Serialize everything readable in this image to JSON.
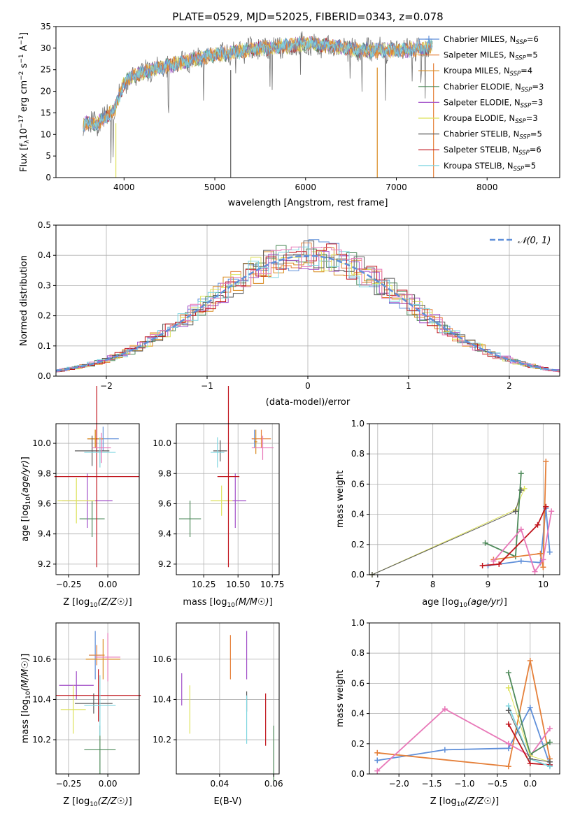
{
  "figure": {
    "title": "PLATE=0529, MJD=52025, FIBERID=0343, z=0.078"
  },
  "colors": {
    "Chabrier MILES": "#5f8fd9",
    "Salpeter MILES": "#e5803a",
    "Kroupa MILES": "#d98a1e",
    "Chabrier ELODIE": "#4e8a5a",
    "Salpeter ELODIE": "#a24fc8",
    "Kroupa ELODIE": "#dde25a",
    "Chabrier STELIB": "#5a5a5a",
    "Salpeter STELIB": "#c0141c",
    "Kroupa STELIB": "#7fd6e0",
    "pink": "#e878b8",
    "grid": "#b0b0b0"
  },
  "chart_data": [
    {
      "id": "spectrum",
      "type": "line",
      "xlabel": "wavelength [Angstrom, rest frame]",
      "ylabel": "Flux [f_λ10^-17 erg cm^-2 s^-1 A^-1]",
      "xlim": [
        3250,
        8800
      ],
      "ylim": [
        0,
        35
      ],
      "xticks": [
        4000,
        5000,
        6000,
        7000,
        8000
      ],
      "yticks": [
        0,
        5,
        10,
        15,
        20,
        25,
        30,
        35
      ],
      "grid": false,
      "legend_position": "top-right",
      "legend": [
        {
          "name": "Chabrier MILES",
          "nssp": "6",
          "marker": true
        },
        {
          "name": "Salpeter MILES",
          "nssp": "5",
          "marker": false
        },
        {
          "name": "Kroupa MILES",
          "nssp": "4",
          "marker": false
        },
        {
          "name": "Chabrier ELODIE",
          "nssp": "3",
          "marker": false
        },
        {
          "name": "Salpeter ELODIE",
          "nssp": "3",
          "marker": false
        },
        {
          "name": "Kroupa ELODIE",
          "nssp": "3",
          "marker": false
        },
        {
          "name": "Chabrier STELIB",
          "nssp": "5",
          "marker": false
        },
        {
          "name": "Salpeter STELIB",
          "nssp": "6",
          "marker": false
        },
        {
          "name": "Kroupa STELIB",
          "nssp": "5",
          "marker": false
        }
      ],
      "continuum": {
        "x": [
          3550,
          3700,
          3800,
          3900,
          4000,
          4100,
          4300,
          4500,
          4800,
          5000,
          5200,
          5500,
          5800,
          6000,
          6300,
          6600,
          6900,
          7100,
          7300,
          7400
        ],
        "y": [
          12.5,
          12.5,
          14,
          16,
          22,
          23.5,
          25,
          26,
          27.5,
          28.5,
          29,
          30,
          30.5,
          31,
          30.5,
          29.5,
          29.5,
          29.5,
          30,
          30.5
        ]
      },
      "spikes": [
        {
          "wavelength": 3910,
          "flux": 0
        },
        {
          "wavelength": 5175,
          "flux": 0
        },
        {
          "wavelength": 6790,
          "flux": 0
        },
        {
          "wavelength": 7410,
          "flux": 0
        }
      ]
    },
    {
      "id": "residuals",
      "type": "step",
      "xlabel": "(data-model)/error",
      "ylabel": "Normed distribution",
      "xlim": [
        -2.5,
        2.5
      ],
      "ylim": [
        0,
        0.5
      ],
      "xticks": [
        -2,
        -1,
        0,
        1,
        2
      ],
      "xticklabels": [
        "−2",
        "−1",
        "0",
        "1",
        "2"
      ],
      "yticks": [
        0.0,
        0.1,
        0.2,
        0.3,
        0.4,
        0.5
      ],
      "yticklabels": [
        "0.0",
        "0.1",
        "0.2",
        "0.3",
        "0.4",
        "0.5"
      ],
      "grid": true,
      "legend_position": "top-right",
      "legend": [
        {
          "name": "𝒩(0, 1)",
          "style": "dashed"
        }
      ],
      "reference_curve": "normal(0,1)"
    },
    {
      "id": "age-vs-Z",
      "type": "errorbar",
      "xlabel": "Z [log10(Z/Z☉)]",
      "ylabel": "age  [log10(age/yr)]",
      "xlim": [
        -0.33,
        0.2
      ],
      "ylim": [
        9.13,
        10.13
      ],
      "xticks": [
        -0.25,
        0.0
      ],
      "xticklabels": [
        "−0.25",
        "0.00"
      ],
      "yticks": [
        9.2,
        9.4,
        9.6,
        9.8,
        10.0
      ],
      "grid": true,
      "points": [
        {
          "series": "Chabrier MILES",
          "x": -0.03,
          "y": 10.03,
          "xerr": 0.1,
          "yerr": 0.08
        },
        {
          "series": "Salpeter MILES",
          "x": -0.08,
          "y": 10.03,
          "xerr": 0.05,
          "yerr": 0.06
        },
        {
          "series": "Kroupa MILES",
          "x": -0.08,
          "y": 10.03,
          "xerr": 0.05,
          "yerr": 0.06
        },
        {
          "series": "Chabrier ELODIE",
          "x": -0.1,
          "y": 9.5,
          "xerr": 0.08,
          "yerr": 0.12
        },
        {
          "series": "Salpeter ELODIE",
          "x": -0.13,
          "y": 9.62,
          "xerr": 0.16,
          "yerr": 0.18
        },
        {
          "series": "Kroupa ELODIE",
          "x": -0.2,
          "y": 9.62,
          "xerr": 0.12,
          "yerr": 0.15
        },
        {
          "series": "Chabrier STELIB",
          "x": -0.1,
          "y": 9.95,
          "xerr": 0.11,
          "yerr": 0.1
        },
        {
          "series": "Salpeter STELIB",
          "x": -0.07,
          "y": 9.78,
          "xerr": 0.27,
          "yerr": 0.6
        },
        {
          "series": "Kroupa STELIB",
          "x": -0.05,
          "y": 9.94,
          "xerr": 0.1,
          "yerr": 0.1
        },
        {
          "series": "pink",
          "x": -0.04,
          "y": 9.97,
          "xerr": 0.06,
          "yerr": 0.1
        }
      ]
    },
    {
      "id": "age-vs-mass",
      "type": "errorbar",
      "xlabel": "mass [log10(M/M☉)]",
      "ylabel": "",
      "xlim": [
        10.05,
        10.8
      ],
      "ylim": [
        9.13,
        10.13
      ],
      "xticks": [
        10.25,
        10.5,
        10.75
      ],
      "xticklabels": [
        "10.25",
        "10.50",
        "10.75"
      ],
      "yticks": [
        9.2,
        9.4,
        9.6,
        9.8,
        10.0
      ],
      "grid": true,
      "points": [
        {
          "series": "Chabrier MILES",
          "x": 10.62,
          "y": 10.03,
          "xerr": 0.02,
          "yerr": 0.06
        },
        {
          "series": "Salpeter MILES",
          "x": 10.67,
          "y": 10.03,
          "xerr": 0.07,
          "yerr": 0.06
        },
        {
          "series": "Kroupa MILES",
          "x": 10.63,
          "y": 10.01,
          "xerr": 0.01,
          "yerr": 0.08
        },
        {
          "series": "Chabrier ELODIE",
          "x": 10.15,
          "y": 9.5,
          "xerr": 0.08,
          "yerr": 0.12
        },
        {
          "series": "Salpeter ELODIE",
          "x": 10.48,
          "y": 9.62,
          "xerr": 0.08,
          "yerr": 0.18
        },
        {
          "series": "Kroupa ELODIE",
          "x": 10.38,
          "y": 9.62,
          "xerr": 0.08,
          "yerr": 0.1
        },
        {
          "series": "Chabrier STELIB",
          "x": 10.37,
          "y": 9.95,
          "xerr": 0.05,
          "yerr": 0.07
        },
        {
          "series": "Salpeter STELIB",
          "x": 10.43,
          "y": 9.78,
          "xerr": 0.08,
          "yerr": 0.6
        },
        {
          "series": "Kroupa STELIB",
          "x": 10.35,
          "y": 9.94,
          "xerr": 0.05,
          "yerr": 0.1
        },
        {
          "series": "pink",
          "x": 10.68,
          "y": 9.97,
          "xerr": 0.08,
          "yerr": 0.08
        }
      ]
    },
    {
      "id": "weight-vs-age",
      "type": "line",
      "xlabel": "age  [log10(age/yr)]",
      "ylabel": "mass weight",
      "xlim": [
        6.85,
        10.3
      ],
      "ylim": [
        0,
        1
      ],
      "xticks": [
        7,
        8,
        9,
        10
      ],
      "yticks": [
        0.0,
        0.2,
        0.4,
        0.6,
        0.8,
        1.0
      ],
      "yticklabels": [
        "0.0",
        "0.2",
        "0.4",
        "0.6",
        "0.8",
        "1.0"
      ],
      "grid": true,
      "series": [
        {
          "series": "Kroupa ELODIE",
          "x": [
            6.9,
            9.5,
            9.66
          ],
          "y": [
            0.0,
            0.43,
            0.57
          ]
        },
        {
          "series": "Chabrier STELIB",
          "x": [
            6.9,
            9.5,
            9.6
          ],
          "y": [
            0.0,
            0.42,
            0.56
          ]
        },
        {
          "series": "Chabrier ELODIE",
          "x": [
            8.95,
            9.5,
            9.6
          ],
          "y": [
            0.21,
            0.12,
            0.67
          ]
        },
        {
          "series": "Chabrier MILES",
          "x": [
            9.0,
            9.6,
            9.95,
            10.05,
            10.12
          ],
          "y": [
            0.06,
            0.09,
            0.08,
            0.44,
            0.15
          ]
        },
        {
          "series": "Salpeter MILES",
          "x": [
            9.1,
            9.95,
            10.0,
            10.05
          ],
          "y": [
            0.1,
            0.14,
            0.05,
            0.75
          ]
        },
        {
          "series": "Salpeter STELIB",
          "x": [
            8.9,
            9.2,
            9.9,
            10.05
          ],
          "y": [
            0.06,
            0.07,
            0.33,
            0.45
          ]
        },
        {
          "series": "pink",
          "x": [
            9.1,
            9.6,
            9.85,
            10.0,
            10.15
          ],
          "y": [
            0.09,
            0.3,
            0.02,
            0.1,
            0.42
          ]
        }
      ]
    },
    {
      "id": "mass-vs-Z",
      "type": "errorbar",
      "xlabel": "Z [log10(Z/Z☉)]",
      "ylabel": "mass [log10(M/M☉)]",
      "xlim": [
        -0.33,
        0.2
      ],
      "ylim": [
        10.03,
        10.78
      ],
      "xticks": [
        -0.25,
        0.0
      ],
      "xticklabels": [
        "−0.25",
        "0.00"
      ],
      "yticks": [
        10.2,
        10.4,
        10.6
      ],
      "grid": true,
      "points": [
        {
          "series": "Chabrier MILES",
          "x": -0.08,
          "y": 10.62,
          "xerr": 0.04,
          "yerr": 0.12
        },
        {
          "series": "Salpeter MILES",
          "x": -0.07,
          "y": 10.62,
          "xerr": 0.05,
          "yerr": 0.05
        },
        {
          "series": "Kroupa MILES",
          "x": -0.03,
          "y": 10.6,
          "xerr": 0.11,
          "yerr": 0.1
        },
        {
          "series": "Chabrier ELODIE",
          "x": -0.05,
          "y": 10.15,
          "xerr": 0.1,
          "yerr": 0.12
        },
        {
          "series": "Salpeter ELODIE",
          "x": -0.2,
          "y": 10.47,
          "xerr": 0.11,
          "yerr": 0.07
        },
        {
          "series": "Kroupa ELODIE",
          "x": -0.22,
          "y": 10.35,
          "xerr": 0.08,
          "yerr": 0.12
        },
        {
          "series": "Chabrier STELIB",
          "x": -0.09,
          "y": 10.38,
          "xerr": 0.12,
          "yerr": 0.05
        },
        {
          "series": "Salpeter STELIB",
          "x": -0.06,
          "y": 10.42,
          "xerr": 0.27,
          "yerr": 0.13
        },
        {
          "series": "Kroupa STELIB",
          "x": -0.05,
          "y": 10.37,
          "xerr": 0.1,
          "yerr": 0.15
        },
        {
          "series": "pink",
          "x": 0.0,
          "y": 10.61,
          "xerr": 0.08,
          "yerr": 0.12
        }
      ]
    },
    {
      "id": "mass-vs-EBV",
      "type": "errorbar",
      "xlabel": "E(B-V)",
      "ylabel": "",
      "xlim": [
        0.024,
        0.062
      ],
      "ylim": [
        10.03,
        10.78
      ],
      "xticks": [
        0.04,
        0.06
      ],
      "xticklabels": [
        "0.04",
        "0.06"
      ],
      "yticks": [
        10.2,
        10.4,
        10.6
      ],
      "grid": true,
      "points": [
        {
          "series": "Salpeter ELODIE",
          "x": 0.026,
          "y": 10.45,
          "xerr": 0,
          "yerr": 0.08
        },
        {
          "series": "Kroupa ELODIE",
          "x": 0.029,
          "y": 10.35,
          "xerr": 0,
          "yerr": 0.12
        },
        {
          "series": "Salpeter MILES",
          "x": 0.044,
          "y": 10.61,
          "xerr": 0,
          "yerr": 0.11
        },
        {
          "series": "Salpeter ELODIE",
          "x": 0.05,
          "y": 10.62,
          "xerr": 0,
          "yerr": 0.12
        },
        {
          "series": "Chabrier STELIB",
          "x": 0.05,
          "y": 10.39,
          "xerr": 0,
          "yerr": 0.05
        },
        {
          "series": "Kroupa STELIB",
          "x": 0.05,
          "y": 10.3,
          "xerr": 0,
          "yerr": 0.12
        },
        {
          "series": "Salpeter STELIB",
          "x": 0.057,
          "y": 10.3,
          "xerr": 0,
          "yerr": 0.13
        },
        {
          "series": "Chabrier ELODIE",
          "x": 0.06,
          "y": 10.13,
          "xerr": 0,
          "yerr": 0.14
        }
      ]
    },
    {
      "id": "weight-vs-Z",
      "type": "line",
      "xlabel": "Z [log10(Z/Z☉)]",
      "ylabel": "mass weight",
      "xlim": [
        -2.45,
        0.45
      ],
      "ylim": [
        0,
        1
      ],
      "xticks": [
        -2.0,
        -1.5,
        -1.0,
        -0.5,
        0.0
      ],
      "xticklabels": [
        "−2.0",
        "−1.5",
        "−1.0",
        "−0.5",
        "0.0"
      ],
      "yticks": [
        0.0,
        0.2,
        0.4,
        0.6,
        0.8,
        1.0
      ],
      "yticklabels": [
        "0.0",
        "0.2",
        "0.4",
        "0.6",
        "0.8",
        "1.0"
      ],
      "grid": true,
      "series": [
        {
          "series": "Chabrier MILES",
          "x": [
            -2.33,
            -1.3,
            -0.33,
            0.0,
            0.3
          ],
          "y": [
            0.09,
            0.16,
            0.17,
            0.44,
            0.06
          ]
        },
        {
          "series": "Salpeter MILES",
          "x": [
            -2.33,
            -0.33,
            0.0,
            0.3
          ],
          "y": [
            0.14,
            0.05,
            0.75,
            0.1
          ]
        },
        {
          "series": "pink",
          "x": [
            -2.33,
            -1.3,
            -0.33,
            0.0,
            0.3
          ],
          "y": [
            0.02,
            0.43,
            0.2,
            0.12,
            0.3
          ]
        },
        {
          "series": "Chabrier ELODIE",
          "x": [
            -0.33,
            0.0,
            0.3
          ],
          "y": [
            0.67,
            0.13,
            0.21
          ]
        },
        {
          "series": "Kroupa ELODIE",
          "x": [
            -0.33,
            0.0,
            0.3
          ],
          "y": [
            0.57,
            0.12,
            0.08
          ]
        },
        {
          "series": "Salpeter STELIB",
          "x": [
            -0.33,
            0.0,
            0.3
          ],
          "y": [
            0.33,
            0.07,
            0.06
          ]
        },
        {
          "series": "Kroupa STELIB",
          "x": [
            -0.33,
            0.0,
            0.3
          ],
          "y": [
            0.45,
            0.1,
            0.05
          ]
        },
        {
          "series": "Chabrier STELIB",
          "x": [
            -0.33,
            0.0,
            0.3
          ],
          "y": [
            0.42,
            0.1,
            0.08
          ]
        }
      ]
    }
  ]
}
